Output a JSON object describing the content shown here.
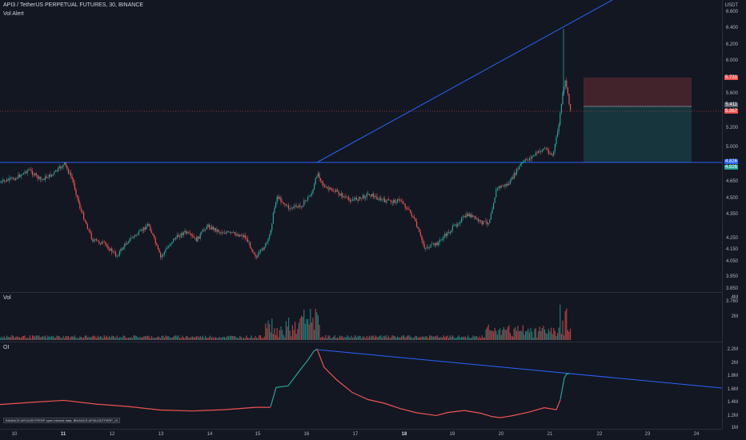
{
  "header": {
    "title": "API3 / TetherUS PERPETUAL FUTURES, 30, BINANCE",
    "indicator": "Vol Alert"
  },
  "price_axis": {
    "unit": "USDT",
    "ticks": [
      "6.600",
      "6.400",
      "6.200",
      "6.000",
      "5.800",
      "5.600",
      "5.400",
      "5.200",
      "5.000",
      "4.650",
      "4.500",
      "4.350",
      "4.250",
      "4.150",
      "4.050",
      "3.950",
      "3.850",
      "3.760"
    ]
  },
  "price_tags": {
    "stop": "5.731",
    "current": "5.411",
    "entry": "5.367",
    "horizontal": "4.826",
    "horizontal_b": "4.826"
  },
  "volume_pane": {
    "label": "Vol",
    "ticks": [
      "4M",
      "2M"
    ]
  },
  "oi_pane": {
    "label": "OI",
    "ticks": [
      "2.2M",
      "2M",
      "1.8M",
      "1.6M",
      "1.4M",
      "1.2M",
      "1M"
    ],
    "note": "BINANCE:API3USDTPERP open interest data: BINANCE:API3USDTPERP_OI"
  },
  "time_axis": {
    "labels": [
      "10",
      "11",
      "12",
      "13",
      "14",
      "15",
      "16",
      "17",
      "18",
      "19",
      "20",
      "21",
      "22",
      "23",
      "24"
    ]
  },
  "colors": {
    "up": "#26a69a",
    "down": "#ef5350",
    "trendline": "#2962ff",
    "background": "#131722"
  }
}
